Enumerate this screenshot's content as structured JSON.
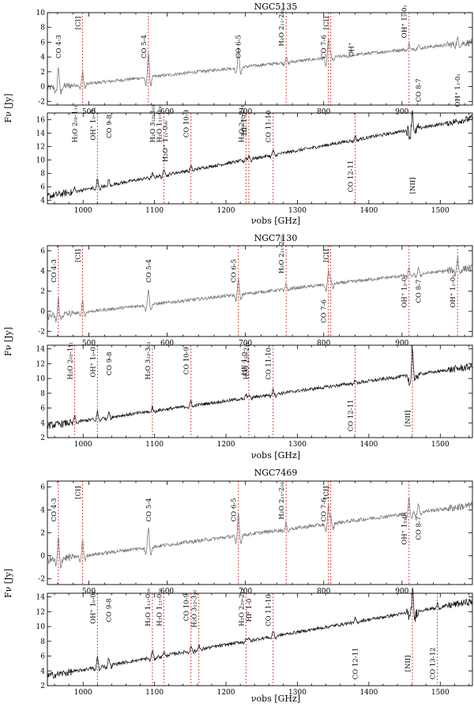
{
  "figure": {
    "y_axis_label": "Fν [Jy]",
    "x_axis_label": "νobs [GHz]"
  },
  "chart_data": [
    {
      "type": "line",
      "galaxy": "NGC5135",
      "panels": [
        {
          "id": "slw",
          "xlim": [
            447,
            990
          ],
          "ylim": [
            -2.5,
            10
          ],
          "xticks": [
            500,
            600,
            700,
            800,
            900
          ],
          "yticks": [
            -2,
            0,
            2,
            4,
            6,
            8,
            10
          ],
          "continuum": [
            [
              447,
              -0.2
            ],
            [
              990,
              6.0
            ]
          ],
          "lines": [
            {
              "name": "CO 4-3",
              "x": 461.0,
              "h": 2.8,
              "marker": false,
              "label_y": 5.4
            },
            {
              "name": "[CI]",
              "x": 492.0,
              "h": 1.8,
              "marker": true,
              "label_y": 8.6
            },
            {
              "name": "CO 5-4",
              "x": 576.0,
              "h": 3.4,
              "marker": true,
              "label_y": 5.4
            },
            {
              "name": "CO 6-5",
              "x": 691.0,
              "h": 2.6,
              "marker": false,
              "label_y": 5.4
            },
            {
              "name": "H₂O 2₁₁-2₀₂",
              "x": 752.0,
              "h": 0.8,
              "marker": true,
              "label_y": 8.0
            },
            {
              "name": "CO 7-6",
              "x": 806.0,
              "h": 3.2,
              "marker": true,
              "label_y": 5.4
            },
            {
              "name": "[CI]",
              "x": 809.0,
              "h": 1.6,
              "marker": true,
              "label_y": 8.6
            },
            {
              "name": "CH⁺",
              "x": 835.0,
              "h": 0.6,
              "marker": false,
              "label_y": 5.0
            },
            {
              "name": "OH⁺ 1₂-0₁",
              "x": 909.0,
              "h": 0.7,
              "marker": true,
              "label_y": 8.8
            },
            {
              "name": "CO 8-7",
              "x": 921.0,
              "h": 0.6,
              "marker": false,
              "label_y": -0.5
            },
            {
              "name": "OH⁺ 1₁-0₁",
              "x": 971.0,
              "h": 0.6,
              "marker": false,
              "label_y": -0.5
            }
          ]
        },
        {
          "id": "ssw",
          "xlim": [
            950,
            1545
          ],
          "ylim": [
            3.5,
            17
          ],
          "xticks": [
            1000,
            1100,
            1200,
            1300,
            1400,
            1500
          ],
          "yticks": [
            4,
            6,
            8,
            10,
            12,
            14,
            16
          ],
          "continuum": [
            [
              950,
              4.6
            ],
            [
              1545,
              16.2
            ]
          ],
          "lines": [
            {
              "name": "H₂O 2₀₂-1₁₁",
              "x": 988.0,
              "h": 0.6,
              "marker": false,
              "label_y": 15.4
            },
            {
              "name": "OH⁺ 1₀-0₁",
              "x": 1020.0,
              "h": 1.2,
              "marker": true,
              "label_y": 15.4
            },
            {
              "name": "CO 9-8",
              "x": 1036.0,
              "h": 0.8,
              "marker": false,
              "label_y": 15.0
            },
            {
              "name": "H₂O 3₁₂-3₀₃",
              "x": 1097.0,
              "h": 0.5,
              "marker": false,
              "label_y": 15.4
            },
            {
              "name": "H₂O 1₁₁-0₀₀",
              "x": 1113.0,
              "h": 0.7,
              "marker": true,
              "label_y": 15.4
            },
            {
              "name": "H₂O⁺ 1₁₁-0₀₀",
              "x": 1115.0,
              "h": 0.5,
              "marker": false,
              "label_y": 12.8
            },
            {
              "name": "CO 10-9",
              "x": 1151.0,
              "h": 0.6,
              "marker": true,
              "label_y": 15.4
            },
            {
              "name": "H₂O 2₂₀-2₁₁",
              "x": 1228.0,
              "h": 0.6,
              "marker": true,
              "label_y": 15.4
            },
            {
              "name": "HF 1-0",
              "x": 1232.0,
              "h": 0.8,
              "marker": true,
              "label_y": 15.4
            },
            {
              "name": "CO 11-10",
              "x": 1266.0,
              "h": 0.7,
              "marker": true,
              "label_y": 15.0
            },
            {
              "name": "CO 12-11",
              "x": 1381.0,
              "h": 0.6,
              "marker": true,
              "label_y": 7.6
            },
            {
              "name": "[NII]",
              "x": 1461.0,
              "h": 3.0,
              "marker": false,
              "label_y": 6.2
            }
          ]
        }
      ]
    },
    {
      "type": "line",
      "galaxy": "NGC7130",
      "panels": [
        {
          "id": "slw",
          "xlim": [
            447,
            990
          ],
          "ylim": [
            -2.5,
            6.5
          ],
          "xticks": [
            500,
            600,
            700,
            800,
            900
          ],
          "yticks": [
            -2,
            0,
            2,
            4,
            6
          ],
          "continuum": [
            [
              447,
              -0.5
            ],
            [
              990,
              4.3
            ]
          ],
          "lines": [
            {
              "name": "CO 4-3",
              "x": 461.0,
              "h": 1.6,
              "marker": true,
              "label_y": 4.0
            },
            {
              "name": "[CI]",
              "x": 492.0,
              "h": 1.2,
              "marker": true,
              "label_y": 5.5
            },
            {
              "name": "CO 5-4",
              "x": 576.0,
              "h": 1.6,
              "marker": false,
              "label_y": 4.0
            },
            {
              "name": "CO 6-5",
              "x": 691.0,
              "h": 1.6,
              "marker": true,
              "label_y": 4.0
            },
            {
              "name": "H₂O 2₁₁-2₀₂",
              "x": 752.0,
              "h": 0.6,
              "marker": true,
              "label_y": 5.6
            },
            {
              "name": "[CI]",
              "x": 809.0,
              "h": 1.2,
              "marker": true,
              "label_y": 5.5
            },
            {
              "name": "CO 7-6",
              "x": 806.0,
              "h": 1.8,
              "marker": true,
              "label_y": 0.0
            },
            {
              "name": "OH⁺ 1₂-0₁",
              "x": 909.0,
              "h": 0.8,
              "marker": true,
              "label_y": 2.0
            },
            {
              "name": "CO 8-7",
              "x": 921.0,
              "h": 0.6,
              "marker": false,
              "label_y": 2.0
            },
            {
              "name": "OH⁺ 1₁-0₁",
              "x": 971.0,
              "h": 1.2,
              "marker": true,
              "label_y": 2.0
            }
          ]
        },
        {
          "id": "ssw",
          "xlim": [
            950,
            1545
          ],
          "ylim": [
            2,
            14.5
          ],
          "xticks": [
            1000,
            1100,
            1200,
            1300,
            1400,
            1500
          ],
          "yticks": [
            2,
            4,
            6,
            8,
            10,
            12,
            14
          ],
          "continuum": [
            [
              950,
              3.6
            ],
            [
              1545,
              11.6
            ]
          ],
          "lines": [
            {
              "name": "H₂O 2₀₂-1₁₁",
              "x": 988.0,
              "h": 0.8,
              "marker": true,
              "label_y": 12.4
            },
            {
              "name": "OH⁺ 1₀-0₁",
              "x": 1020.0,
              "h": 1.0,
              "marker": true,
              "label_y": 12.4
            },
            {
              "name": "CO 9-8",
              "x": 1036.0,
              "h": 0.8,
              "marker": false,
              "label_y": 12.0
            },
            {
              "name": "H₂O 3₁₂-3₀₃",
              "x": 1097.0,
              "h": 0.6,
              "marker": true,
              "label_y": 12.4
            },
            {
              "name": "CO 10-9",
              "x": 1151.0,
              "h": 0.7,
              "marker": true,
              "label_y": 12.4
            },
            {
              "name": "H₂O 2₂₀-2₁₁",
              "x": 1228.0,
              "h": 0.7,
              "marker": false,
              "label_y": 12.4
            },
            {
              "name": "HF 1-0",
              "x": 1232.0,
              "h": 0.7,
              "marker": true,
              "label_y": 12.0
            },
            {
              "name": "CO 11-10",
              "x": 1266.0,
              "h": 0.8,
              "marker": true,
              "label_y": 12.0
            },
            {
              "name": "CO 12-11",
              "x": 1381.0,
              "h": 0.5,
              "marker": true,
              "label_y": 5.0
            },
            {
              "name": "[NII]",
              "x": 1461.0,
              "h": 4.0,
              "marker": true,
              "label_y": 4.6
            }
          ]
        }
      ]
    },
    {
      "type": "line",
      "galaxy": "NGC7469",
      "panels": [
        {
          "id": "slw",
          "xlim": [
            447,
            990
          ],
          "ylim": [
            -2.5,
            6.5
          ],
          "xticks": [
            500,
            600,
            700,
            800,
            900
          ],
          "yticks": [
            -2,
            0,
            2,
            4,
            6
          ],
          "continuum": [
            [
              447,
              -0.4
            ],
            [
              990,
              4.4
            ]
          ],
          "lines": [
            {
              "name": "CO 4-3",
              "x": 461.0,
              "h": 1.8,
              "marker": true,
              "label_y": 4.0
            },
            {
              "name": "[CI]",
              "x": 492.0,
              "h": 1.4,
              "marker": true,
              "label_y": 5.5
            },
            {
              "name": "CO 5-4",
              "x": 576.0,
              "h": 1.8,
              "marker": false,
              "label_y": 4.0
            },
            {
              "name": "CO 6-5",
              "x": 691.0,
              "h": 2.0,
              "marker": true,
              "label_y": 4.0
            },
            {
              "name": "H₂O 2₁₁-2₀₂",
              "x": 752.0,
              "h": 0.6,
              "marker": true,
              "label_y": 4.8
            },
            {
              "name": "CO 7-6",
              "x": 806.0,
              "h": 2.2,
              "marker": true,
              "label_y": 4.0
            },
            {
              "name": "[CI]",
              "x": 809.0,
              "h": 1.4,
              "marker": true,
              "label_y": 5.5
            },
            {
              "name": "OH⁺ 1₂-0₁",
              "x": 909.0,
              "h": 1.4,
              "marker": true,
              "label_y": 2.4
            },
            {
              "name": "CO 8-7",
              "x": 921.0,
              "h": 0.8,
              "marker": false,
              "label_y": 2.4
            }
          ]
        },
        {
          "id": "ssw",
          "xlim": [
            950,
            1545
          ],
          "ylim": [
            2,
            14.5
          ],
          "xticks": [
            1000,
            1100,
            1200,
            1300,
            1400,
            1500
          ],
          "yticks": [
            2,
            4,
            6,
            8,
            10,
            12,
            14
          ],
          "continuum": [
            [
              950,
              3.3
            ],
            [
              1545,
              13.4
            ]
          ],
          "lines": [
            {
              "name": "OH⁺ 1₀-0₁",
              "x": 1020.0,
              "h": 1.4,
              "marker": true,
              "label_y": 12.6
            },
            {
              "name": "CO 9-8",
              "x": 1036.0,
              "h": 1.0,
              "marker": false,
              "label_y": 12.2
            },
            {
              "name": "H₂O 1₁₁-0₀₀",
              "x": 1097.0,
              "h": 1.0,
              "marker": true,
              "label_y": 12.6
            },
            {
              "name": "H₂O 1₁₁-0₀₀",
              "x": 1113.0,
              "h": 0.6,
              "marker": true,
              "label_y": 12.6
            },
            {
              "name": "CO 10-9",
              "x": 1151.0,
              "h": 0.8,
              "marker": true,
              "label_y": 12.6
            },
            {
              "name": "H₂O 3₁₂-3₁₀",
              "x": 1162.0,
              "h": 0.6,
              "marker": true,
              "label_y": 12.4
            },
            {
              "name": "H₂O 2₂₀-2₁₁",
              "x": 1228.0,
              "h": 0.6,
              "marker": true,
              "label_y": 12.6
            },
            {
              "name": "HF 1-0",
              "x": 1232.0,
              "h": 0.6,
              "marker": false,
              "label_y": 12.2
            },
            {
              "name": "CO 11-10",
              "x": 1266.0,
              "h": 0.8,
              "marker": true,
              "label_y": 12.2
            },
            {
              "name": "CO 12-11",
              "x": 1381.0,
              "h": 0.5,
              "marker": false,
              "label_y": 5.0
            },
            {
              "name": "[NII]",
              "x": 1461.0,
              "h": 3.0,
              "marker": true,
              "label_y": 5.0
            },
            {
              "name": "CO 13-12",
              "x": 1496.0,
              "h": 0.5,
              "marker": true,
              "label_y": 5.0
            }
          ]
        }
      ]
    }
  ]
}
